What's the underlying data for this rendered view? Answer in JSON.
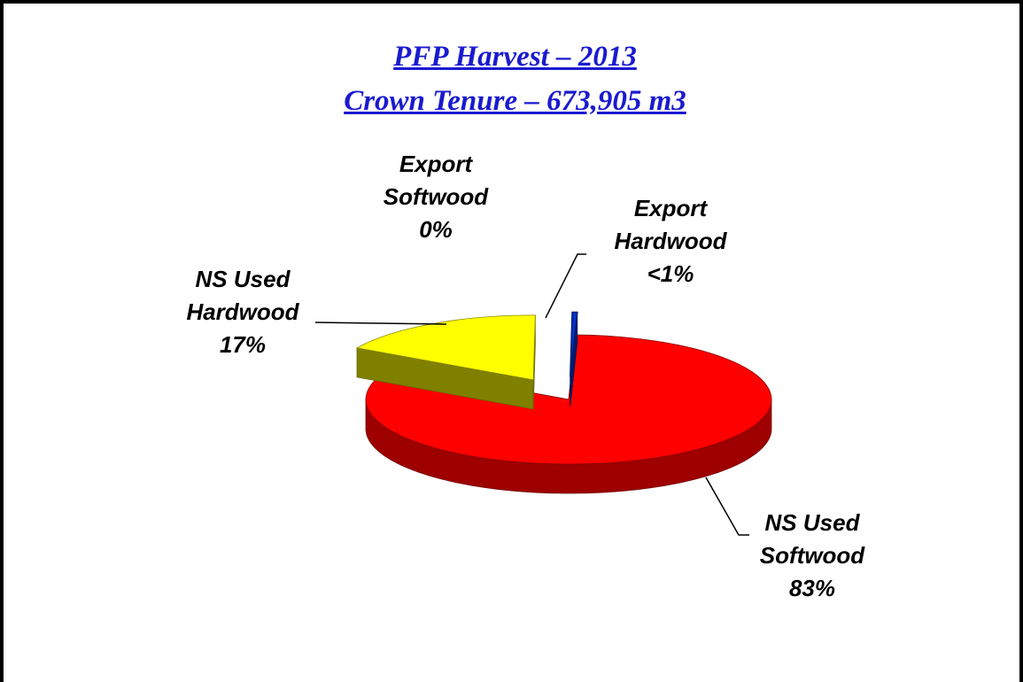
{
  "chart_data": {
    "type": "pie",
    "title": "PFP Harvest – 2013",
    "subtitle": "Crown Tenure – 673,905 m3",
    "categories": [
      "NS Used Softwood",
      "NS Used Hardwood",
      "Export Hardwood",
      "Export Softwood"
    ],
    "values": [
      83,
      17,
      0.4,
      0
    ],
    "value_labels": [
      "83%",
      "17%",
      "<1%",
      "0%"
    ],
    "colors": [
      "#ff0000",
      "#ffff00",
      "#0033cc",
      "#00a000"
    ]
  }
}
